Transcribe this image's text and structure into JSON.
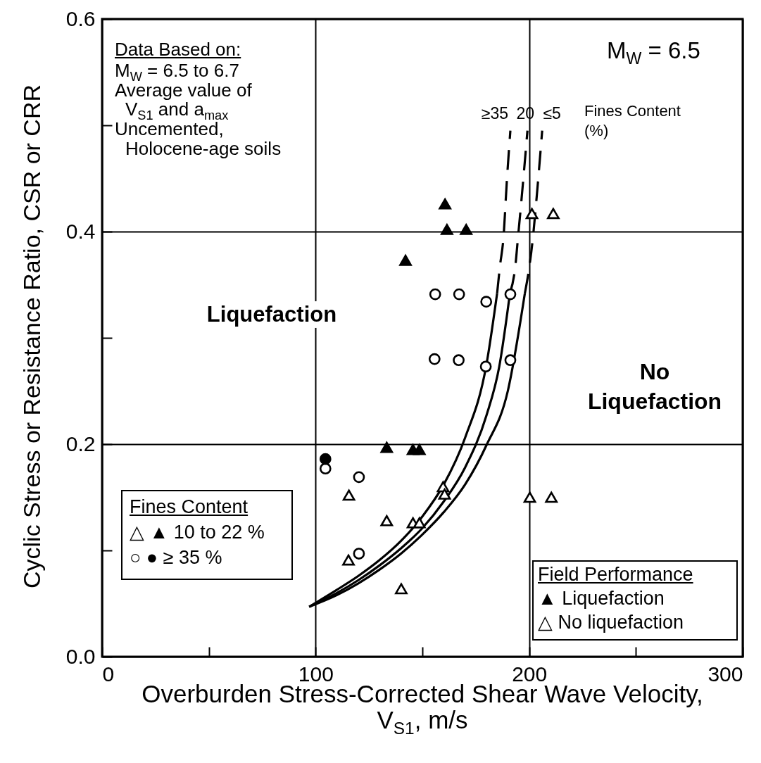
{
  "chart_data": {
    "type": "scatter",
    "xlabel": "Overburden Stress-Corrected Shear Wave Velocity, V$_{S1}$, m/s",
    "ylabel": "Cyclic Stress or Resistance Ratio, CSR or CRR",
    "xlim": [
      0,
      300
    ],
    "xticks": [
      0,
      {
        "value": 50,
        "label": null
      },
      100,
      {
        "value": 150,
        "label": null
      },
      200,
      {
        "value": 250,
        "label": null
      },
      300
    ],
    "ylim": [
      0,
      0.6
    ],
    "yticks": [
      {
        "value": 0,
        "label": "0.0"
      },
      {
        "value": 0.1,
        "label": null
      },
      0.2,
      {
        "value": 0.3,
        "label": null
      },
      0.4,
      {
        "value": 0.5,
        "label": null
      },
      0.6
    ],
    "grid": true,
    "series": [
      {
        "type": "line",
        "line_style": "solid",
        "color": "#000000",
        "x": [
          97,
          110,
          120,
          130,
          140,
          150,
          160,
          170,
          180,
          185
        ],
        "values": [
          0.047,
          0.063,
          0.076,
          0.091,
          0.109,
          0.132,
          0.162,
          0.206,
          0.275,
          0.342
        ]
      },
      {
        "type": "line",
        "line_style": "solid",
        "color": "#000000",
        "x": [
          97,
          110,
          120,
          130,
          140,
          150,
          160,
          170,
          180,
          186,
          191
        ],
        "values": [
          0.047,
          0.06,
          0.072,
          0.086,
          0.102,
          0.121,
          0.146,
          0.178,
          0.227,
          0.273,
          0.342
        ]
      },
      {
        "type": "line",
        "line_style": "solid",
        "color": "#000000",
        "x": [
          97,
          110,
          120,
          130,
          140,
          150,
          160,
          170,
          180,
          190,
          198
        ],
        "values": [
          0.047,
          0.058,
          0.069,
          0.082,
          0.097,
          0.115,
          0.136,
          0.162,
          0.199,
          0.25,
          0.342
        ]
      },
      {
        "type": "line",
        "line_style": "dashed",
        "name": "≥35",
        "color": "#000000",
        "x": [
          185,
          186.3,
          188,
          189.5,
          191.2
        ],
        "values": [
          0.342,
          0.367,
          0.395,
          0.446,
          0.495
        ]
      },
      {
        "type": "line",
        "line_style": "dashed",
        "name": "20",
        "color": "#000000",
        "x": [
          191,
          193.5,
          194.8,
          196.5,
          199.2
        ],
        "values": [
          0.342,
          0.367,
          0.395,
          0.432,
          0.495
        ]
      },
      {
        "type": "line",
        "line_style": "dashed",
        "name": "≤5",
        "color": "#000000",
        "x": [
          198,
          200.1,
          201.8,
          203.5,
          206.1
        ],
        "values": [
          0.342,
          0.367,
          0.395,
          0.432,
          0.495
        ]
      },
      {
        "marker": "triangle",
        "color": "#000000",
        "x": [
          160.6,
          161.5,
          170.5,
          142.1,
          133.3,
          145.6,
          148.6
        ],
        "values": [
          0.426,
          0.402,
          0.402,
          0.373,
          0.197,
          0.195,
          0.195
        ]
      },
      {
        "marker": "triangle",
        "color": "#ffffff",
        "x": [
          115.6,
          133.3,
          145.6,
          148.6,
          159.7,
          160.4,
          115.4,
          140.1,
          200.3,
          210.4,
          201.3,
          211.3
        ],
        "values": [
          0.152,
          0.128,
          0.126,
          0.126,
          0.16,
          0.153,
          0.091,
          0.064,
          0.15,
          0.15,
          0.417,
          0.417
        ]
      },
      {
        "marker": "circle",
        "color": "#ffffff",
        "x": [
          156.0,
          167.2,
          179.9,
          191.2,
          155.7,
          167.0,
          179.7,
          191.2,
          104.6,
          120.3,
          120.3
        ],
        "values": [
          0.341,
          0.341,
          0.334,
          0.341,
          0.28,
          0.279,
          0.273,
          0.279,
          0.177,
          0.169,
          0.097
        ]
      },
      {
        "marker": "circle",
        "color": "#000000",
        "x": [
          104.6
        ],
        "values": [
          0.186
        ]
      }
    ],
    "annotations": [
      "Data Based on:",
      "M$_{W}$ = 6.5 to 6.7",
      "Average value of",
      "V$_{S1}$ and a$_{max}$",
      "Uncemented,",
      "Holocene-age soils",
      "M$_{W}$ = 6.5",
      "Liquefaction",
      "No Liquefaction",
      "Fines Content (%)",
      "Fines Content",
      "△ ▲ 10 to 22 %",
      "○ ● ≥ 35 %",
      "Field Performance",
      "▲ Liquefaction",
      "△ No liquefaction"
    ]
  }
}
